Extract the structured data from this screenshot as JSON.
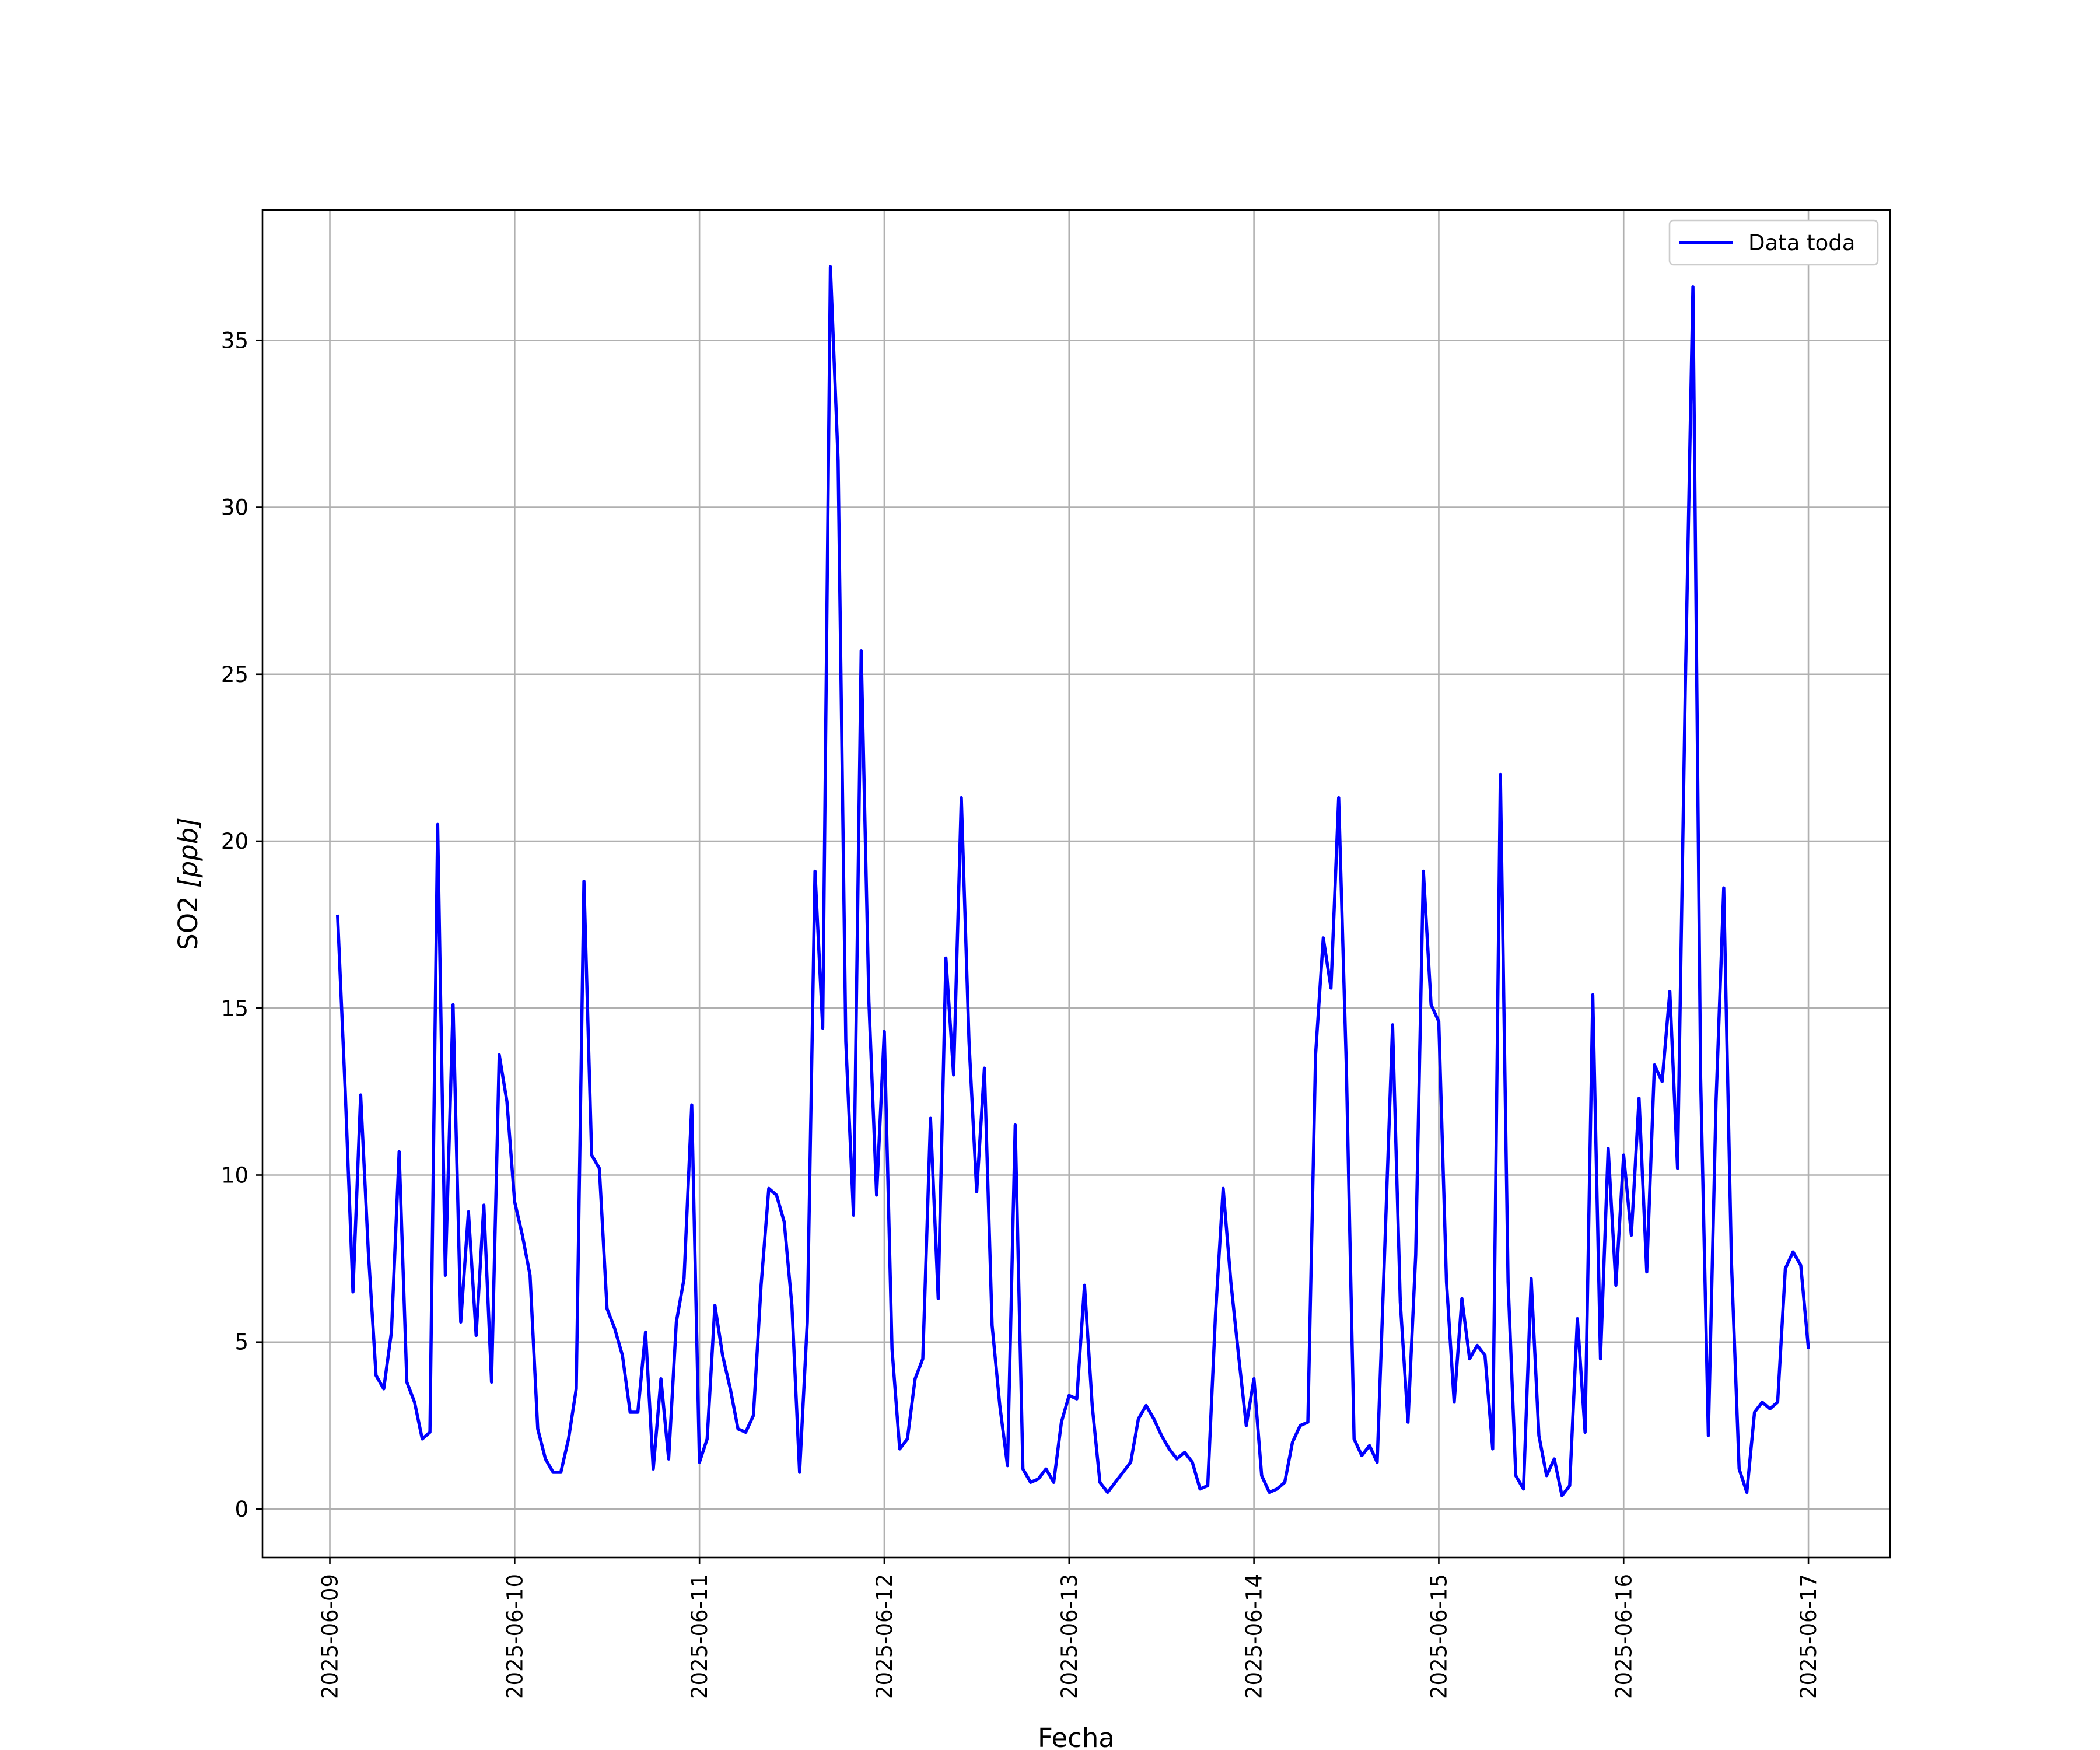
{
  "chart_data": {
    "type": "line",
    "xlabel": "Fecha",
    "ylabel_main": "SO2 ",
    "ylabel_unit": "[ppb]",
    "xlim": [
      "2025-06-08T15:15",
      "2025-06-17T10:36"
    ],
    "ylim": [
      -1.45,
      38.9
    ],
    "grid": true,
    "legend_position": "top-right",
    "x_ticks": [
      "2025-06-09",
      "2025-06-10",
      "2025-06-11",
      "2025-06-12",
      "2025-06-13",
      "2025-06-14",
      "2025-06-15",
      "2025-06-16",
      "2025-06-17"
    ],
    "y_ticks": [
      0,
      5,
      10,
      15,
      20,
      25,
      30,
      35
    ],
    "series": [
      {
        "name": "Data toda",
        "color": "#0000ff",
        "x": [
          "2025-06-09T01:00",
          "2025-06-09T02:00",
          "2025-06-09T03:00",
          "2025-06-09T04:00",
          "2025-06-09T05:00",
          "2025-06-09T06:00",
          "2025-06-09T07:00",
          "2025-06-09T08:00",
          "2025-06-09T09:00",
          "2025-06-09T10:00",
          "2025-06-09T11:00",
          "2025-06-09T12:00",
          "2025-06-09T13:00",
          "2025-06-09T14:00",
          "2025-06-09T15:00",
          "2025-06-09T16:00",
          "2025-06-09T17:00",
          "2025-06-09T18:00",
          "2025-06-09T19:00",
          "2025-06-09T20:00",
          "2025-06-09T21:00",
          "2025-06-09T22:00",
          "2025-06-09T23:00",
          "2025-06-10T00:00",
          "2025-06-10T01:00",
          "2025-06-10T02:00",
          "2025-06-10T03:00",
          "2025-06-10T04:00",
          "2025-06-10T05:00",
          "2025-06-10T06:00",
          "2025-06-10T07:00",
          "2025-06-10T08:00",
          "2025-06-10T09:00",
          "2025-06-10T10:00",
          "2025-06-10T11:00",
          "2025-06-10T12:00",
          "2025-06-10T13:00",
          "2025-06-10T14:00",
          "2025-06-10T15:00",
          "2025-06-10T16:00",
          "2025-06-10T17:00",
          "2025-06-10T18:00",
          "2025-06-10T19:00",
          "2025-06-10T20:00",
          "2025-06-10T21:00",
          "2025-06-10T22:00",
          "2025-06-10T23:00",
          "2025-06-11T00:00",
          "2025-06-11T01:00",
          "2025-06-11T02:00",
          "2025-06-11T03:00",
          "2025-06-11T04:00",
          "2025-06-11T05:00",
          "2025-06-11T06:00",
          "2025-06-11T07:00",
          "2025-06-11T08:00",
          "2025-06-11T09:00",
          "2025-06-11T10:00",
          "2025-06-11T11:00",
          "2025-06-11T12:00",
          "2025-06-11T13:00",
          "2025-06-11T14:00",
          "2025-06-11T15:00",
          "2025-06-11T16:00",
          "2025-06-11T17:00",
          "2025-06-11T18:00",
          "2025-06-11T19:00",
          "2025-06-11T20:00",
          "2025-06-11T21:00",
          "2025-06-11T22:00",
          "2025-06-11T23:00",
          "2025-06-12T00:00",
          "2025-06-12T01:00",
          "2025-06-12T02:00",
          "2025-06-12T03:00",
          "2025-06-12T04:00",
          "2025-06-12T05:00",
          "2025-06-12T06:00",
          "2025-06-12T07:00",
          "2025-06-12T08:00",
          "2025-06-12T09:00",
          "2025-06-12T10:00",
          "2025-06-12T11:00",
          "2025-06-12T12:00",
          "2025-06-12T13:00",
          "2025-06-12T14:00",
          "2025-06-12T15:00",
          "2025-06-12T16:00",
          "2025-06-12T17:00",
          "2025-06-12T18:00",
          "2025-06-12T19:00",
          "2025-06-12T20:00",
          "2025-06-12T21:00",
          "2025-06-12T22:00",
          "2025-06-12T23:00",
          "2025-06-13T00:00",
          "2025-06-13T01:00",
          "2025-06-13T02:00",
          "2025-06-13T03:00",
          "2025-06-13T04:00",
          "2025-06-13T05:00",
          "2025-06-13T06:00",
          "2025-06-13T07:00",
          "2025-06-13T08:00",
          "2025-06-13T09:00",
          "2025-06-13T10:00",
          "2025-06-13T11:00",
          "2025-06-13T12:00",
          "2025-06-13T13:00",
          "2025-06-13T14:00",
          "2025-06-13T15:00",
          "2025-06-13T16:00",
          "2025-06-13T17:00",
          "2025-06-13T18:00",
          "2025-06-13T19:00",
          "2025-06-13T20:00",
          "2025-06-13T21:00",
          "2025-06-13T22:00",
          "2025-06-13T23:00",
          "2025-06-14T00:00",
          "2025-06-14T01:00",
          "2025-06-14T02:00",
          "2025-06-14T03:00",
          "2025-06-14T04:00",
          "2025-06-14T05:00",
          "2025-06-14T06:00",
          "2025-06-14T07:00",
          "2025-06-14T08:00",
          "2025-06-14T09:00",
          "2025-06-14T10:00",
          "2025-06-14T11:00",
          "2025-06-14T12:00",
          "2025-06-14T13:00",
          "2025-06-14T14:00",
          "2025-06-14T15:00",
          "2025-06-14T16:00",
          "2025-06-14T17:00",
          "2025-06-14T18:00",
          "2025-06-14T19:00",
          "2025-06-14T20:00",
          "2025-06-14T21:00",
          "2025-06-14T22:00",
          "2025-06-14T23:00",
          "2025-06-15T00:00",
          "2025-06-15T01:00",
          "2025-06-15T02:00",
          "2025-06-15T03:00",
          "2025-06-15T04:00",
          "2025-06-15T05:00",
          "2025-06-15T06:00",
          "2025-06-15T07:00",
          "2025-06-15T08:00",
          "2025-06-15T09:00",
          "2025-06-15T10:00",
          "2025-06-15T11:00",
          "2025-06-15T12:00",
          "2025-06-15T13:00",
          "2025-06-15T14:00",
          "2025-06-15T15:00",
          "2025-06-15T16:00",
          "2025-06-15T17:00",
          "2025-06-15T18:00",
          "2025-06-15T19:00",
          "2025-06-15T20:00",
          "2025-06-15T21:00",
          "2025-06-15T22:00",
          "2025-06-15T23:00",
          "2025-06-16T00:00",
          "2025-06-16T01:00",
          "2025-06-16T02:00",
          "2025-06-16T03:00",
          "2025-06-16T04:00",
          "2025-06-16T05:00",
          "2025-06-16T06:00",
          "2025-06-16T07:00",
          "2025-06-16T08:00",
          "2025-06-16T09:00",
          "2025-06-16T10:00",
          "2025-06-16T11:00",
          "2025-06-16T12:00",
          "2025-06-16T13:00",
          "2025-06-16T14:00",
          "2025-06-16T15:00",
          "2025-06-16T16:00",
          "2025-06-16T17:00",
          "2025-06-16T18:00",
          "2025-06-16T19:00",
          "2025-06-16T20:00",
          "2025-06-16T21:00",
          "2025-06-16T22:00",
          "2025-06-16T23:00",
          "2025-06-17T00:00"
        ],
        "y": [
          17.8,
          12.5,
          6.5,
          12.4,
          7.7,
          4.0,
          3.6,
          5.3,
          10.7,
          3.8,
          3.2,
          2.1,
          2.3,
          20.5,
          7.0,
          15.1,
          5.6,
          8.9,
          5.2,
          9.1,
          3.8,
          13.6,
          12.2,
          9.2,
          8.2,
          7.0,
          2.4,
          1.5,
          1.1,
          1.1,
          2.1,
          3.6,
          18.8,
          10.6,
          10.2,
          6.0,
          5.4,
          4.6,
          2.9,
          2.9,
          5.3,
          1.2,
          3.9,
          1.5,
          5.6,
          6.9,
          12.1,
          1.4,
          2.1,
          6.1,
          4.6,
          3.6,
          2.4,
          2.3,
          2.8,
          6.7,
          9.6,
          9.4,
          8.6,
          6.1,
          1.1,
          5.6,
          19.1,
          14.4,
          37.2,
          31.4,
          14.0,
          8.8,
          25.7,
          15.2,
          9.4,
          14.3,
          4.8,
          1.8,
          2.1,
          3.9,
          4.5,
          11.7,
          6.3,
          16.5,
          13.0,
          21.3,
          14.0,
          9.5,
          13.2,
          5.5,
          3.1,
          1.3,
          11.5,
          1.2,
          0.8,
          0.9,
          1.2,
          0.8,
          2.6,
          3.4,
          3.3,
          6.7,
          3.1,
          0.8,
          0.5,
          0.8,
          1.1,
          1.4,
          2.7,
          3.1,
          2.7,
          2.2,
          1.8,
          1.5,
          1.7,
          1.4,
          0.6,
          0.7,
          5.8,
          9.6,
          6.8,
          4.6,
          2.5,
          3.9,
          1.0,
          0.5,
          0.6,
          0.8,
          2.0,
          2.5,
          2.6,
          13.6,
          17.1,
          15.6,
          21.3,
          13.2,
          2.1,
          1.6,
          1.9,
          1.4,
          7.9,
          14.5,
          6.2,
          2.6,
          7.6,
          19.1,
          15.1,
          14.6,
          6.8,
          3.2,
          6.3,
          4.5,
          4.9,
          4.6,
          1.8,
          22.0,
          6.8,
          1.0,
          0.6,
          6.9,
          2.2,
          1.0,
          1.5,
          0.4,
          0.7,
          5.7,
          2.3,
          15.4,
          4.5,
          10.8,
          6.7,
          10.6,
          8.2,
          12.3,
          7.1,
          13.3,
          12.8,
          15.5,
          10.2,
          24.5,
          36.6,
          12.9,
          2.2,
          12.2,
          18.6,
          7.4,
          1.2,
          0.5,
          2.9,
          3.2,
          3.0,
          3.2,
          7.2,
          7.7,
          7.3,
          4.8
        ]
      }
    ]
  }
}
